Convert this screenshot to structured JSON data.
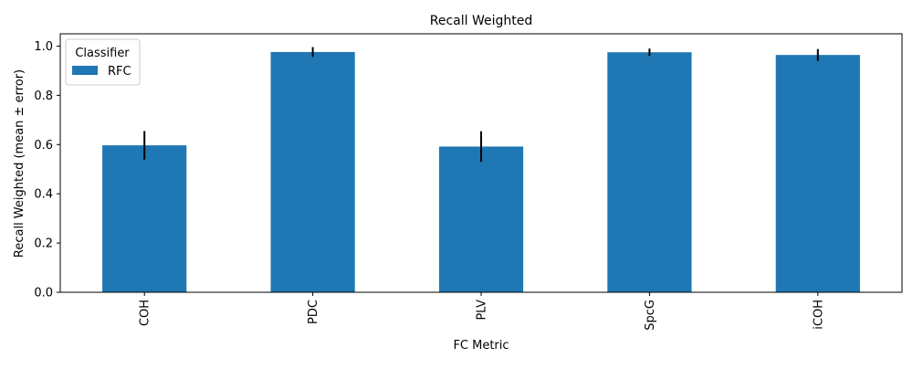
{
  "chart_data": {
    "type": "bar",
    "title": "Recall Weighted",
    "xlabel": "FC Metric",
    "ylabel": "Recall Weighted (mean ± error)",
    "categories": [
      "COH",
      "PDC",
      "PLV",
      "SpcG",
      "iCOH"
    ],
    "series": [
      {
        "name": "RFC",
        "values": [
          0.597,
          0.976,
          0.592,
          0.975,
          0.964
        ],
        "errors": [
          0.058,
          0.02,
          0.062,
          0.015,
          0.024
        ],
        "color": "#1f77b4"
      }
    ],
    "ylim": [
      0,
      1.05
    ],
    "yticks": [
      0.0,
      0.2,
      0.4,
      0.6,
      0.8,
      1.0
    ],
    "ytick_labels": [
      "0.0",
      "0.2",
      "0.4",
      "0.6",
      "0.8",
      "1.0"
    ],
    "legend": {
      "title": "Classifier",
      "placement": "top-left"
    },
    "grid": false
  }
}
